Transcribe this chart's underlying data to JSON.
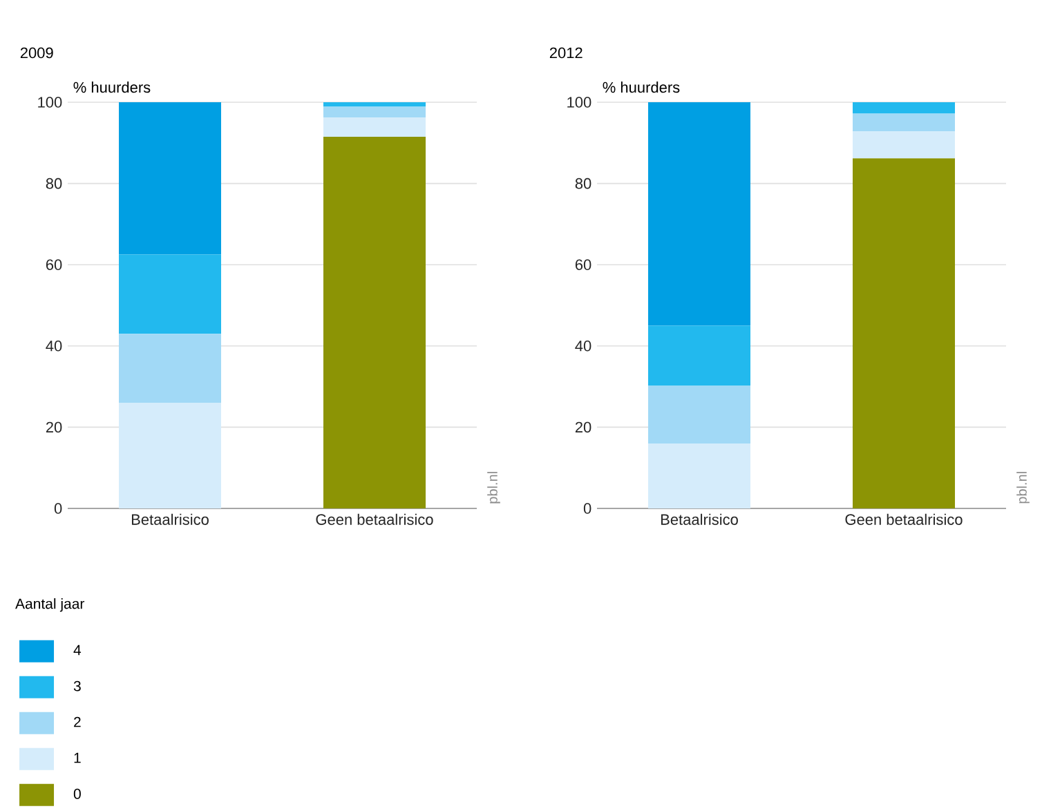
{
  "chart_data": [
    {
      "type": "bar",
      "title": "2009",
      "ylabel": "% huurders",
      "categories": [
        "Betaalrisico",
        "Geen betaalrisico"
      ],
      "stacked": true,
      "ylim": [
        0,
        100
      ],
      "yticks": [
        0,
        20,
        40,
        60,
        80,
        100
      ],
      "grid": "y",
      "legend": "bottom",
      "legend_title": "Aantal jaar",
      "annotations": [
        "pbl.nl"
      ],
      "series": [
        {
          "name": "0",
          "color": "#8c9405",
          "values": [
            0,
            91.5
          ]
        },
        {
          "name": "1",
          "color": "#d5ecfb",
          "values": [
            26,
            4.7
          ]
        },
        {
          "name": "2",
          "color": "#a1d9f6",
          "values": [
            17,
            2.7
          ]
        },
        {
          "name": "3",
          "color": "#22b9ee",
          "values": [
            19.5,
            1.1
          ]
        },
        {
          "name": "4",
          "color": "#009fe3",
          "values": [
            37.5,
            0
          ]
        }
      ]
    },
    {
      "type": "bar",
      "title": "2012",
      "ylabel": "% huurders",
      "categories": [
        "Betaalrisico",
        "Geen betaalrisico"
      ],
      "stacked": true,
      "ylim": [
        0,
        100
      ],
      "yticks": [
        0,
        20,
        40,
        60,
        80,
        100
      ],
      "grid": "y",
      "annotations": [
        "pbl.nl"
      ],
      "series": [
        {
          "color": "#8c9405",
          "values": [
            0,
            86.2
          ]
        },
        {
          "color": "#d5ecfb",
          "values": [
            16,
            6.6
          ]
        },
        {
          "color": "#a1d9f6",
          "values": [
            14.2,
            4.4
          ]
        },
        {
          "color": "#22b9ee",
          "values": [
            14.8,
            2.8
          ]
        },
        {
          "color": "#009fe3",
          "values": [
            55,
            0
          ]
        }
      ]
    }
  ]
}
